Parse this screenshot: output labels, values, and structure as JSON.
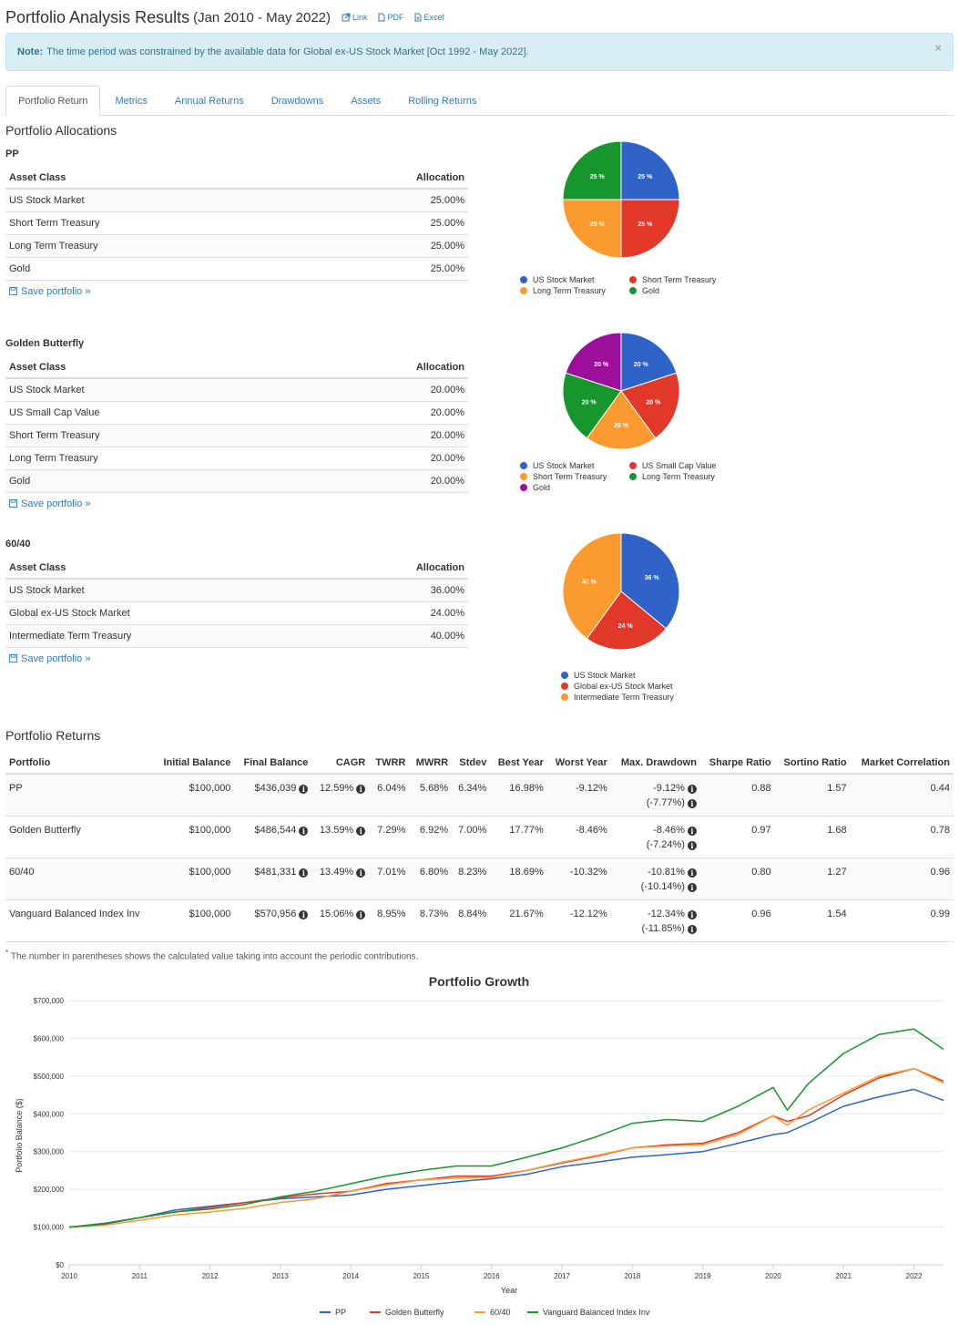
{
  "header": {
    "title": "Portfolio Analysis Results",
    "period": "(Jan 2010 - May 2022)",
    "links": [
      {
        "label": "Link",
        "icon": "external-link-icon"
      },
      {
        "label": "PDF",
        "icon": "pdf-file-icon"
      },
      {
        "label": "Excel",
        "icon": "excel-file-icon"
      }
    ]
  },
  "note": {
    "label": "Note:",
    "text": "The time period was constrained by the available data for Global ex-US Stock Market [Oct 1992 - May 2022].",
    "close": "×"
  },
  "tabs": [
    "Portfolio Return",
    "Metrics",
    "Annual Returns",
    "Drawdowns",
    "Assets",
    "Rolling Returns"
  ],
  "allocations": {
    "heading": "Portfolio Allocations",
    "col_asset": "Asset Class",
    "col_alloc": "Allocation",
    "save_label": "Save portfolio »",
    "portfolios": [
      {
        "name": "PP",
        "rows": [
          {
            "asset": "US Stock Market",
            "alloc": "25.00%"
          },
          {
            "asset": "Short Term Treasury",
            "alloc": "25.00%"
          },
          {
            "asset": "Long Term Treasury",
            "alloc": "25.00%"
          },
          {
            "asset": "Gold",
            "alloc": "25.00%"
          }
        ],
        "slices": [
          {
            "name": "US Stock Market",
            "value": 25,
            "color": "#2f63c7",
            "label": "25 %"
          },
          {
            "name": "Short Term Treasury",
            "value": 25,
            "color": "#e2382a",
            "label": "25 %"
          },
          {
            "name": "Long Term Treasury",
            "value": 25,
            "color": "#fc9a30",
            "label": "25 %"
          },
          {
            "name": "Gold",
            "value": 25,
            "color": "#17962e",
            "label": "25 %"
          }
        ]
      },
      {
        "name": "Golden Butterfly",
        "rows": [
          {
            "asset": "US Stock Market",
            "alloc": "20.00%"
          },
          {
            "asset": "US Small Cap Value",
            "alloc": "20.00%"
          },
          {
            "asset": "Short Term Treasury",
            "alloc": "20.00%"
          },
          {
            "asset": "Long Term Treasury",
            "alloc": "20.00%"
          },
          {
            "asset": "Gold",
            "alloc": "20.00%"
          }
        ],
        "slices": [
          {
            "name": "US Stock Market",
            "value": 20,
            "color": "#2f63c7",
            "label": "20 %"
          },
          {
            "name": "US Small Cap Value",
            "value": 20,
            "color": "#e2382a",
            "label": "20 %"
          },
          {
            "name": "Short Term Treasury",
            "value": 20,
            "color": "#fc9a30",
            "label": "20 %"
          },
          {
            "name": "Long Term Treasury",
            "value": 20,
            "color": "#17962e",
            "label": "20 %"
          },
          {
            "name": "Gold",
            "value": 20,
            "color": "#9b0f9a",
            "label": "20 %"
          }
        ]
      },
      {
        "name": "60/40",
        "rows": [
          {
            "asset": "US Stock Market",
            "alloc": "36.00%"
          },
          {
            "asset": "Global ex-US Stock Market",
            "alloc": "24.00%"
          },
          {
            "asset": "Intermediate Term Treasury",
            "alloc": "40.00%"
          }
        ],
        "slices": [
          {
            "name": "US Stock Market",
            "value": 36,
            "color": "#2f63c7",
            "label": "36 %"
          },
          {
            "name": "Global ex-US Stock Market",
            "value": 24,
            "color": "#e2382a",
            "label": "24 %"
          },
          {
            "name": "Intermediate Term Treasury",
            "value": 40,
            "color": "#fc9a30",
            "label": "40 %"
          }
        ]
      }
    ]
  },
  "returns": {
    "heading": "Portfolio Returns",
    "columns": [
      "Portfolio",
      "Initial Balance",
      "Final Balance",
      "CAGR",
      "TWRR",
      "MWRR",
      "Stdev",
      "Best Year",
      "Worst Year",
      "Max. Drawdown",
      "Sharpe Ratio",
      "Sortino Ratio",
      "Market Correlation"
    ],
    "rows": [
      {
        "portfolio": "PP",
        "initial": "$100,000",
        "final": "$436,039",
        "cagr": "12.59%",
        "twrr": "6.04%",
        "mwrr": "5.68%",
        "stdev": "6.34%",
        "best": "16.98%",
        "worst": "-9.12%",
        "mdd": "-9.12%",
        "mdd2": "(-7.77%)",
        "sharpe": "0.88",
        "sortino": "1.57",
        "corr": "0.44"
      },
      {
        "portfolio": "Golden Butterfly",
        "initial": "$100,000",
        "final": "$486,544",
        "cagr": "13.59%",
        "twrr": "7.29%",
        "mwrr": "6.92%",
        "stdev": "7.00%",
        "best": "17.77%",
        "worst": "-8.46%",
        "mdd": "-8.46%",
        "mdd2": "(-7.24%)",
        "sharpe": "0.97",
        "sortino": "1.68",
        "corr": "0.78"
      },
      {
        "portfolio": "60/40",
        "initial": "$100,000",
        "final": "$481,331",
        "cagr": "13.49%",
        "twrr": "7.01%",
        "mwrr": "6.80%",
        "stdev": "8.23%",
        "best": "18.69%",
        "worst": "-10.32%",
        "mdd": "-10.81%",
        "mdd2": "(-10.14%)",
        "sharpe": "0.80",
        "sortino": "1.27",
        "corr": "0.96"
      },
      {
        "portfolio": "Vanguard Balanced Index Inv",
        "initial": "$100,000",
        "final": "$570,956",
        "cagr": "15.06%",
        "twrr": "8.95%",
        "mwrr": "8.73%",
        "stdev": "8.84%",
        "best": "21.67%",
        "worst": "-12.12%",
        "mdd": "-12.34%",
        "mdd2": "(-11.85%)",
        "sharpe": "0.96",
        "sortino": "1.54",
        "corr": "0.99"
      }
    ],
    "footnote_mark": "*",
    "footnote": "The number in parentheses shows the calculated value taking into account the periodic contributions."
  },
  "chart_data": {
    "type": "line",
    "title": "Portfolio Growth",
    "xlabel": "Year",
    "ylabel": "Portfolio Balance ($)",
    "xlim": [
      2010,
      2022.42
    ],
    "ylim": [
      0,
      700000
    ],
    "yticks": [
      0,
      100000,
      200000,
      300000,
      400000,
      500000,
      600000,
      700000
    ],
    "ytick_labels": [
      "$0",
      "$100,000",
      "$200,000",
      "$300,000",
      "$400,000",
      "$500,000",
      "$600,000",
      "$700,000"
    ],
    "xticks": [
      "2010",
      "2011",
      "2012",
      "2013",
      "2014",
      "2015",
      "2016",
      "2017",
      "2018",
      "2019",
      "2020",
      "2021",
      "2022"
    ],
    "grid": true,
    "legend_position": "bottom",
    "series": [
      {
        "name": "PP",
        "color": "#2f63c7",
        "x": [
          2010,
          2010.5,
          2011,
          2011.5,
          2012,
          2012.5,
          2013,
          2013.5,
          2014,
          2014.5,
          2015,
          2015.5,
          2016,
          2016.5,
          2017,
          2017.5,
          2018,
          2018.5,
          2019,
          2019.5,
          2020,
          2020.2,
          2020.5,
          2021,
          2021.5,
          2022,
          2022.42
        ],
        "y": [
          100000,
          110000,
          125000,
          145000,
          155000,
          165000,
          175000,
          180000,
          185000,
          200000,
          210000,
          220000,
          228000,
          240000,
          260000,
          272000,
          285000,
          292000,
          300000,
          322000,
          345000,
          350000,
          375000,
          420000,
          445000,
          465000,
          436039
        ]
      },
      {
        "name": "Golden Butterfly",
        "color": "#e2382a",
        "x": [
          2010,
          2010.5,
          2011,
          2011.5,
          2012,
          2012.5,
          2013,
          2013.5,
          2014,
          2014.5,
          2015,
          2015.5,
          2016,
          2016.5,
          2017,
          2017.5,
          2018,
          2018.5,
          2019,
          2019.5,
          2020,
          2020.2,
          2020.5,
          2021,
          2021.5,
          2022,
          2022.42
        ],
        "y": [
          100000,
          108000,
          125000,
          140000,
          152000,
          165000,
          178000,
          188000,
          195000,
          215000,
          225000,
          235000,
          235000,
          250000,
          270000,
          288000,
          310000,
          318000,
          322000,
          350000,
          395000,
          380000,
          395000,
          450000,
          495000,
          520000,
          486544
        ]
      },
      {
        "name": "60/40",
        "color": "#fc9a30",
        "x": [
          2010,
          2010.5,
          2011,
          2011.5,
          2012,
          2012.5,
          2013,
          2013.5,
          2014,
          2014.5,
          2015,
          2015.5,
          2016,
          2016.5,
          2017,
          2017.5,
          2018,
          2018.5,
          2019,
          2019.5,
          2020,
          2020.2,
          2020.5,
          2021,
          2021.5,
          2022,
          2022.42
        ],
        "y": [
          100000,
          105000,
          118000,
          132000,
          140000,
          150000,
          165000,
          175000,
          195000,
          212000,
          225000,
          230000,
          232000,
          250000,
          272000,
          290000,
          310000,
          315000,
          318000,
          345000,
          395000,
          370000,
          410000,
          455000,
          500000,
          520000,
          481331
        ]
      },
      {
        "name": "Vanguard Balanced Index Inv",
        "color": "#17962e",
        "x": [
          2010,
          2010.5,
          2011,
          2011.5,
          2012,
          2012.5,
          2013,
          2013.5,
          2014,
          2014.5,
          2015,
          2015.5,
          2016,
          2016.5,
          2017,
          2017.5,
          2018,
          2018.5,
          2019,
          2019.5,
          2020,
          2020.2,
          2020.5,
          2021,
          2021.5,
          2022,
          2022.42
        ],
        "y": [
          100000,
          108000,
          125000,
          140000,
          148000,
          160000,
          180000,
          195000,
          215000,
          235000,
          250000,
          262000,
          262000,
          285000,
          310000,
          340000,
          375000,
          385000,
          380000,
          420000,
          470000,
          410000,
          480000,
          560000,
          610000,
          625000,
          570956
        ]
      }
    ]
  }
}
